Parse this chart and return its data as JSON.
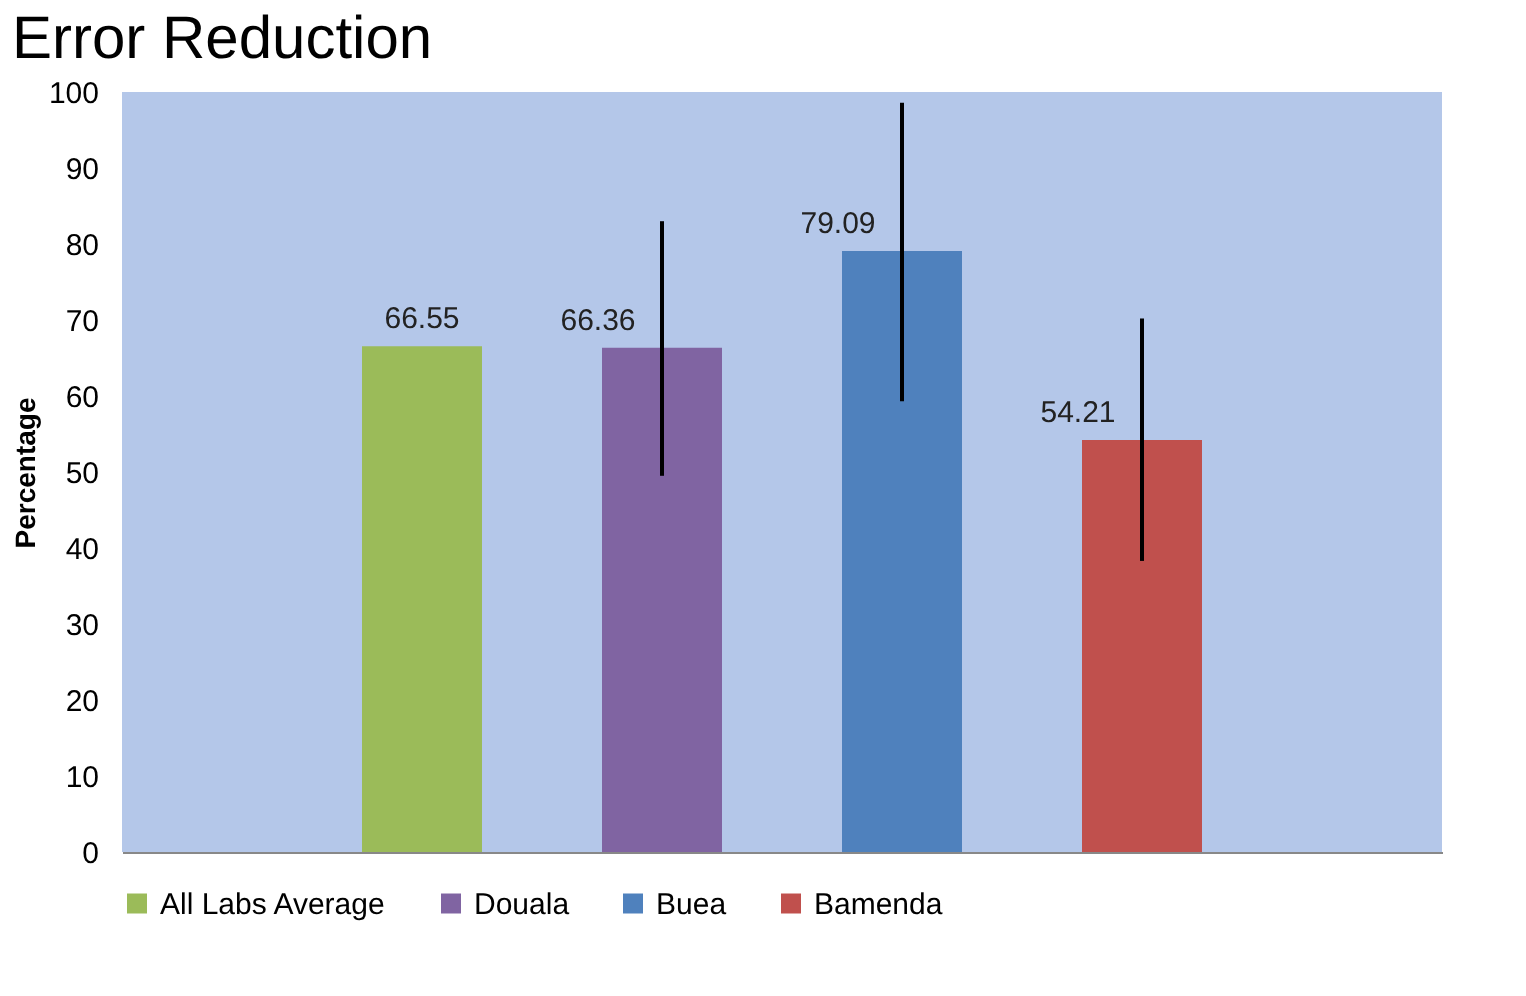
{
  "chart_data": {
    "type": "bar",
    "title": "Error Reduction",
    "ylabel": "Percentage",
    "categories": [
      null
    ],
    "series": [
      {
        "name": "All Labs Average",
        "color": "#9bbb59",
        "values": [
          66.55
        ]
      },
      {
        "name": "Douala",
        "color": "#8064a2",
        "values": [
          66.36
        ],
        "errors": [
          [
            49.5,
            83.0
          ]
        ]
      },
      {
        "name": "Buea",
        "color": "#4f81bd",
        "values": [
          79.09
        ],
        "errors": [
          [
            59.3,
            98.6
          ]
        ]
      },
      {
        "name": "Bamenda",
        "color": "#c0504d",
        "values": [
          54.21
        ],
        "errors": [
          [
            38.3,
            70.2
          ]
        ]
      }
    ],
    "ylim": [
      0,
      100
    ],
    "yticks": [
      0,
      10,
      20,
      30,
      40,
      50,
      60,
      70,
      80,
      90,
      100
    ],
    "grid": false,
    "legend": "bottom",
    "data_labels": true
  }
}
